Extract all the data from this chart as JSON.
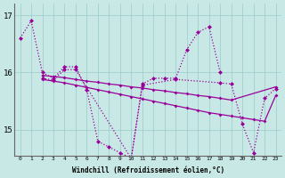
{
  "background": "#c8e8e5",
  "line_color": "#990099",
  "grid_color": "#99cccc",
  "ylim": [
    14.55,
    17.2
  ],
  "yticks": [
    15,
    16,
    17
  ],
  "xlim": [
    -0.5,
    23.5
  ],
  "xlabel": "Windchill (Refroidissement éolien,°C)",
  "series": [
    {
      "x": [
        0,
        1,
        2,
        3,
        4,
        5,
        6,
        7,
        8,
        9,
        10,
        11,
        12,
        13,
        14,
        15,
        16,
        17,
        18
      ],
      "y": [
        16.6,
        16.9,
        16.0,
        15.9,
        16.1,
        16.1,
        15.7,
        14.8,
        14.7,
        14.6,
        14.5,
        15.8,
        15.9,
        15.9,
        15.9,
        16.4,
        16.7,
        16.8,
        16.0
      ],
      "ls": ":",
      "lw": 0.9,
      "ms": 2.5
    },
    {
      "x": [
        2,
        3,
        4,
        5,
        6,
        7,
        8,
        9,
        10,
        11,
        12,
        13,
        14,
        15,
        16,
        17,
        18,
        19,
        23
      ],
      "y": [
        15.95,
        15.93,
        15.91,
        15.88,
        15.85,
        15.83,
        15.8,
        15.78,
        15.75,
        15.73,
        15.7,
        15.68,
        15.65,
        15.63,
        15.6,
        15.58,
        15.55,
        15.52,
        15.75
      ],
      "ls": "-",
      "lw": 0.9,
      "ms": 2.0
    },
    {
      "x": [
        2,
        3,
        4,
        5,
        6,
        7,
        8,
        9,
        10,
        11,
        12,
        13,
        14,
        15,
        16,
        17,
        18,
        19,
        20,
        21,
        22,
        23
      ],
      "y": [
        15.88,
        15.85,
        15.82,
        15.78,
        15.74,
        15.7,
        15.66,
        15.62,
        15.58,
        15.54,
        15.5,
        15.46,
        15.42,
        15.38,
        15.34,
        15.3,
        15.27,
        15.24,
        15.21,
        15.18,
        15.15,
        15.6
      ],
      "ls": "-",
      "lw": 0.9,
      "ms": 2.0
    },
    {
      "x": [
        2,
        3,
        4,
        5,
        10,
        11,
        14,
        18,
        19,
        20,
        21,
        22,
        23
      ],
      "y": [
        15.9,
        15.87,
        16.05,
        16.05,
        14.5,
        15.78,
        15.88,
        15.82,
        15.8,
        15.1,
        14.6,
        15.55,
        15.72
      ],
      "ls": ":",
      "lw": 0.9,
      "ms": 2.5
    }
  ]
}
